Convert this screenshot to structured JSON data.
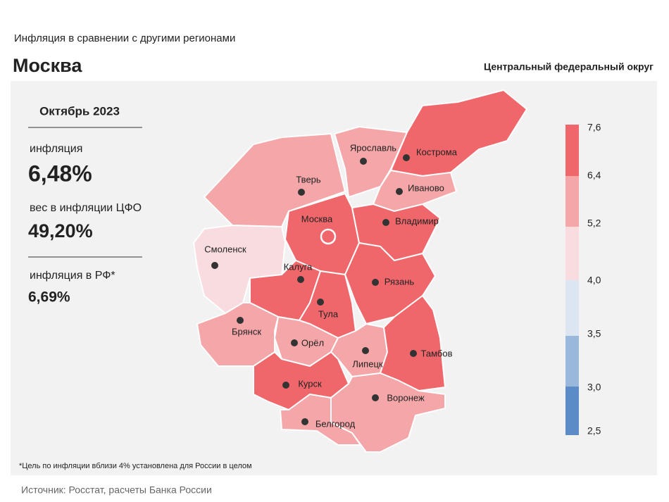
{
  "header": {
    "subtitle": "Инфляция  в сравнении  с другими  регионами",
    "title": "Москва",
    "district": "Центральный федеральный округ"
  },
  "panel": {
    "period": "Октябрь 2023",
    "inflation_label": "инфляция",
    "inflation_value": "6,48%",
    "weight_label": "вес в инфляции  ЦФО",
    "weight_value": "49,20%",
    "russia_label": "инфляция  в РФ*",
    "russia_value": "6,69%"
  },
  "legend": {
    "ticks": [
      "7,6",
      "6,4",
      "5,2",
      "4,0",
      "3,5",
      "3,0",
      "2,5"
    ],
    "colors": [
      "#f0676b",
      "#f5a6a8",
      "#f8dcdf",
      "#dce6f3",
      "#9ab8dc",
      "#5b8cc8"
    ]
  },
  "regions": [
    {
      "name": "Тверь",
      "color": "#f5a6a8"
    },
    {
      "name": "Ярославль",
      "color": "#f5a6a8"
    },
    {
      "name": "Кострома",
      "color": "#f0676b"
    },
    {
      "name": "Иваново",
      "color": "#f5a6a8"
    },
    {
      "name": "Москва",
      "color": "#f0676b"
    },
    {
      "name": "Владимир",
      "color": "#f0676b"
    },
    {
      "name": "Смоленск",
      "color": "#f8dcdf"
    },
    {
      "name": "Калуга",
      "color": "#f0676b"
    },
    {
      "name": "Тула",
      "color": "#f0676b"
    },
    {
      "name": "Рязань",
      "color": "#f0676b"
    },
    {
      "name": "Брянск",
      "color": "#f5a6a8"
    },
    {
      "name": "Орёл",
      "color": "#f5a6a8"
    },
    {
      "name": "Липецк",
      "color": "#f5a6a8"
    },
    {
      "name": "Тамбов",
      "color": "#f0676b"
    },
    {
      "name": "Курск",
      "color": "#f0676b"
    },
    {
      "name": "Воронеж",
      "color": "#f5a6a8"
    },
    {
      "name": "Белгород",
      "color": "#f5a6a8"
    }
  ],
  "footnote": "*Цель по инфляции вблизи 4% установлена для России в целом",
  "source": "Источник: Росстат, расчеты Банка России"
}
